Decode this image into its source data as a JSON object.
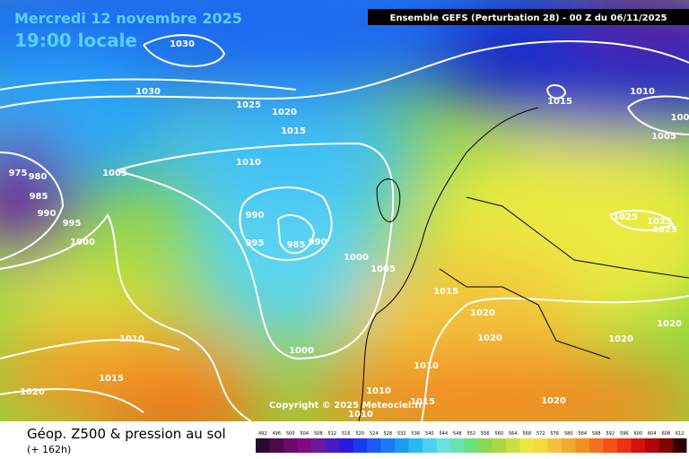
{
  "header": {
    "date": "Mercredi 12 novembre 2025",
    "time": "19:00 locale",
    "model": "Ensemble GEFS  (Perturbation 28)  -  00 Z du 06/11/2025"
  },
  "isobar_labels": [
    1030,
    1030,
    1025,
    1020,
    1015,
    1005,
    1010,
    975,
    980,
    985,
    990,
    995,
    1000,
    990,
    995,
    985,
    990,
    1000,
    1005,
    1015,
    1010,
    1015,
    1020,
    1000,
    1010,
    1010,
    1015,
    1010,
    1020,
    1020,
    1020,
    1020,
    1020,
    1025,
    1025,
    1025,
    1015,
    1010,
    1005,
    100
  ],
  "copyright": "Copyright © 2025 Meteociel.fr",
  "legend": {
    "title": "Géop. Z500 & pression au sol",
    "lead": "(+ 162h)",
    "scale": [
      492,
      496,
      500,
      504,
      508,
      512,
      516,
      520,
      524,
      528,
      532,
      536,
      540,
      544,
      548,
      552,
      556,
      560,
      564,
      568,
      572,
      576,
      580,
      584,
      588,
      592,
      596,
      600,
      604,
      608,
      612
    ]
  }
}
